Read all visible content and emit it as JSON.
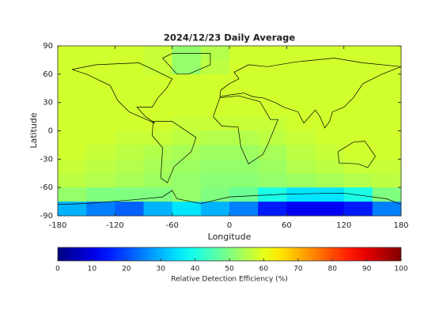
{
  "chart_data": {
    "type": "heatmap",
    "title": "2024/12/23 Daily Average",
    "x_label": "Longitude",
    "y_label": "Latitude",
    "colorbar_label": "Relative Detection Efficiency (%)",
    "colormap": "jet",
    "clim": [
      0,
      100
    ],
    "cticks": [
      0,
      10,
      20,
      30,
      40,
      50,
      60,
      70,
      80,
      90,
      100
    ],
    "xlim": [
      -180,
      180
    ],
    "ylim": [
      -90,
      90
    ],
    "xticks": [
      -180,
      -120,
      -60,
      0,
      60,
      120,
      180
    ],
    "yticks": [
      -90,
      -60,
      -30,
      0,
      30,
      60,
      90
    ],
    "x": [
      -165,
      -135,
      -105,
      -75,
      -45,
      -15,
      15,
      45,
      75,
      105,
      135,
      165
    ],
    "y": [
      82.5,
      67.5,
      52.5,
      37.5,
      22.5,
      7.5,
      -7.5,
      -22.5,
      -37.5,
      -52.5,
      -67.5,
      -82.5
    ],
    "z": [
      [
        58,
        58,
        58,
        57,
        52,
        55,
        58,
        58,
        58,
        58,
        58,
        58
      ],
      [
        58,
        58,
        58,
        57,
        52,
        56,
        58,
        58,
        58,
        58,
        58,
        58
      ],
      [
        58,
        58,
        58,
        58,
        58,
        58,
        58,
        58,
        58,
        58,
        58,
        58
      ],
      [
        58,
        58,
        58,
        58,
        58,
        58,
        58,
        58,
        58,
        58,
        58,
        58
      ],
      [
        58,
        58,
        58,
        58,
        58,
        58,
        58,
        58,
        58,
        58,
        58,
        58
      ],
      [
        58,
        58,
        58,
        58,
        57,
        57,
        57,
        57,
        58,
        58,
        58,
        58
      ],
      [
        58,
        58,
        57,
        57,
        56,
        55,
        55,
        56,
        57,
        58,
        58,
        58
      ],
      [
        58,
        57,
        56,
        55,
        54,
        53,
        53,
        54,
        56,
        57,
        58,
        58
      ],
      [
        57,
        56,
        55,
        54,
        53,
        52,
        52,
        53,
        55,
        56,
        57,
        57
      ],
      [
        56,
        55,
        54,
        53,
        52,
        51,
        51,
        52,
        53,
        54,
        55,
        56
      ],
      [
        52,
        50,
        50,
        50,
        52,
        50,
        48,
        40,
        35,
        35,
        40,
        50
      ],
      [
        30,
        25,
        22,
        30,
        35,
        30,
        25,
        15,
        12,
        12,
        15,
        25
      ]
    ]
  }
}
